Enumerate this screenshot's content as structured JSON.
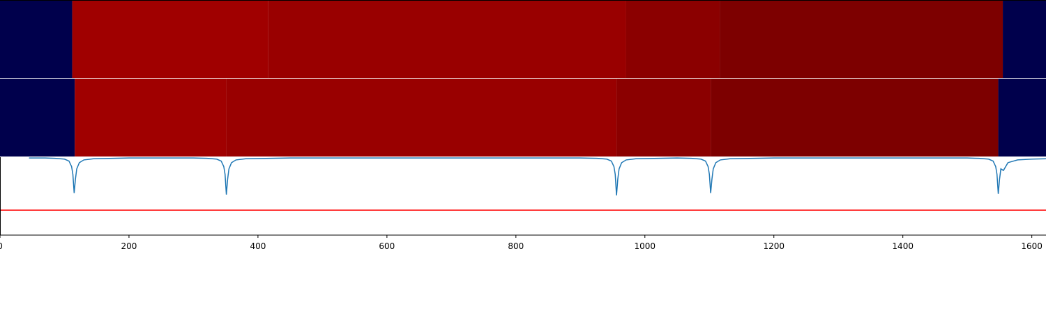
{
  "chart_data": [
    {
      "type": "strip",
      "xlim": [
        0,
        1622
      ],
      "edges": [
        0,
        112,
        416,
        971,
        1116,
        1555,
        1622
      ],
      "colors": [
        "#00004c",
        "#a00000",
        "#990000",
        "#8b0000",
        "#7d0000",
        "#00004c"
      ]
    },
    {
      "type": "strip",
      "xlim": [
        0,
        1622
      ],
      "edges": [
        0,
        116,
        351,
        956,
        1102,
        1548,
        1622
      ],
      "colors": [
        "#00004c",
        "#a00000",
        "#990000",
        "#8b0000",
        "#7d0000",
        "#00004c"
      ]
    },
    {
      "type": "line",
      "xlim": [
        0,
        1622
      ],
      "ylim": [
        0,
        1
      ],
      "xticks": [
        0,
        200,
        400,
        600,
        800,
        1000,
        1200,
        1400,
        1600
      ],
      "series": [
        {
          "color": "#1f77b4",
          "x": [
            45,
            70,
            85,
            100,
            107,
            111,
            113,
            115,
            117,
            119,
            123,
            130,
            145,
            200,
            300,
            321,
            336,
            343,
            347,
            349,
            351,
            353,
            355,
            359,
            366,
            381,
            450,
            600,
            800,
            900,
            926,
            941,
            948,
            952,
            954,
            956,
            958,
            960,
            964,
            971,
            986,
            1050,
            1072,
            1087,
            1094,
            1098,
            1100,
            1102,
            1104,
            1106,
            1110,
            1117,
            1132,
            1200,
            1400,
            1500,
            1518,
            1533,
            1540,
            1544,
            1546,
            1548,
            1550,
            1552,
            1556,
            1563,
            1578,
            1600,
            1622
          ],
          "values": [
            0.99,
            0.99,
            0.985,
            0.975,
            0.95,
            0.88,
            0.78,
            0.54,
            0.72,
            0.85,
            0.93,
            0.965,
            0.98,
            0.99,
            0.99,
            0.985,
            0.975,
            0.95,
            0.88,
            0.78,
            0.52,
            0.72,
            0.85,
            0.93,
            0.965,
            0.98,
            0.99,
            0.99,
            0.99,
            0.99,
            0.985,
            0.975,
            0.95,
            0.88,
            0.78,
            0.51,
            0.72,
            0.85,
            0.93,
            0.965,
            0.98,
            0.99,
            0.985,
            0.975,
            0.95,
            0.88,
            0.78,
            0.54,
            0.72,
            0.85,
            0.93,
            0.965,
            0.98,
            0.99,
            0.99,
            0.99,
            0.985,
            0.975,
            0.95,
            0.88,
            0.78,
            0.53,
            0.72,
            0.85,
            0.83,
            0.93,
            0.965,
            0.975,
            0.98
          ]
        }
      ],
      "hline": {
        "value": 0.32,
        "color": "#ff0000"
      }
    }
  ]
}
